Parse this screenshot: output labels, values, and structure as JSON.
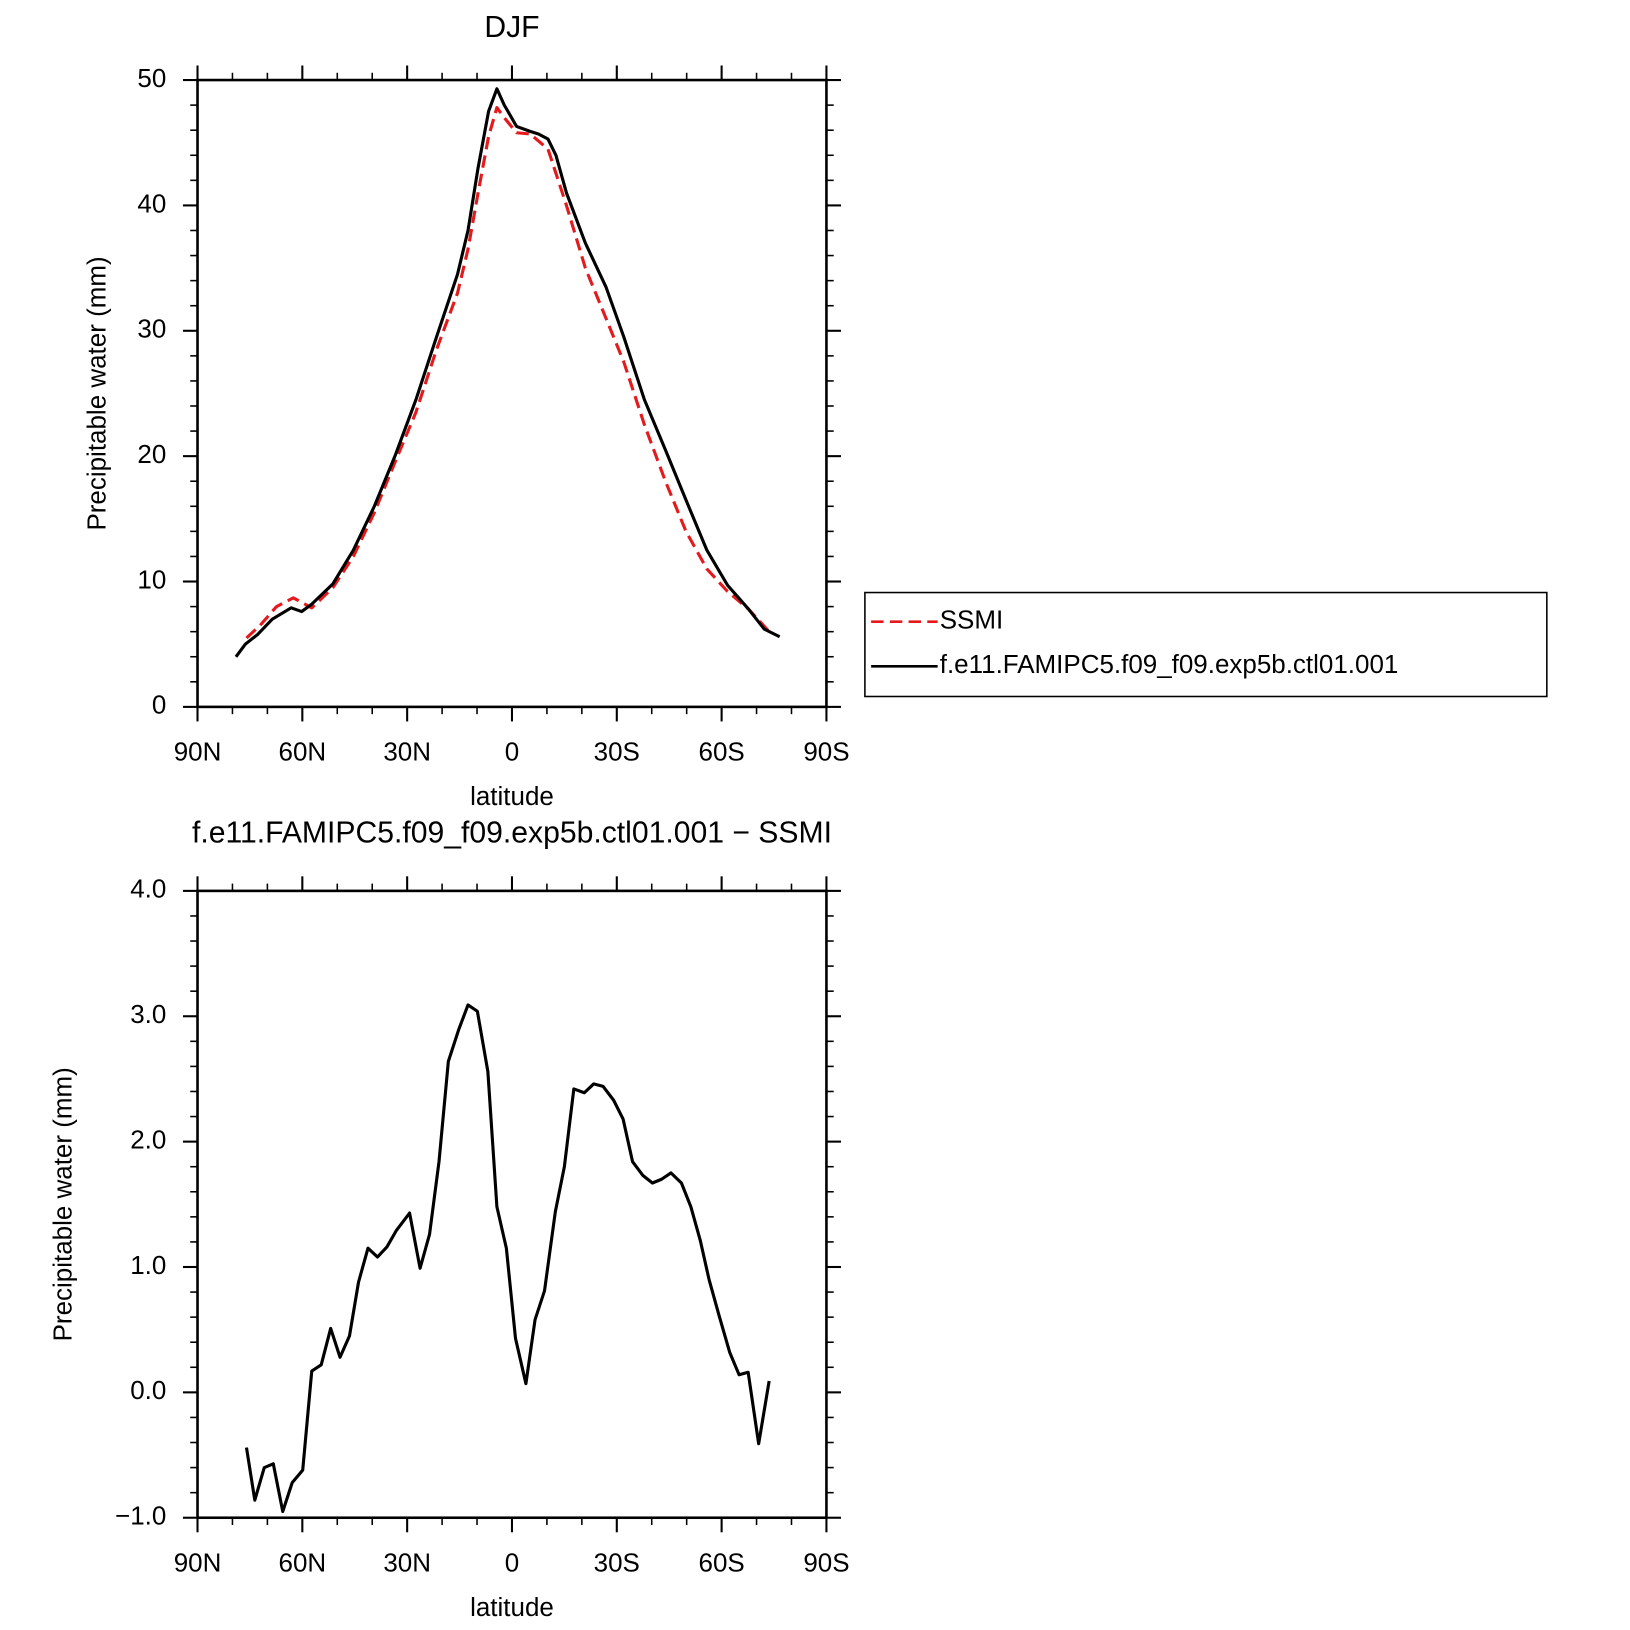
{
  "chart_data": [
    {
      "type": "line",
      "title": "DJF",
      "x_label": "latitude",
      "y_label": "Precipitable water (mm)",
      "xlim": [
        90,
        -90
      ],
      "xticks": [
        {
          "value": 90,
          "label": "90N"
        },
        {
          "value": 60,
          "label": "60N"
        },
        {
          "value": 30,
          "label": "30N"
        },
        0,
        {
          "value": -30,
          "label": "30S"
        },
        {
          "value": -60,
          "label": "60S"
        },
        {
          "value": -90,
          "label": "90S"
        }
      ],
      "ylim": [
        0,
        50
      ],
      "yticks": [
        0,
        10,
        20,
        30,
        40,
        50
      ],
      "legend": "right",
      "series": [
        {
          "name": "SSMI",
          "color": "#e41a1c",
          "style": "dashed",
          "x": [
            76.0,
            72.1,
            67.4,
            62.6,
            57.3,
            51.3,
            45.4,
            39.4,
            33.5,
            27.5,
            21.6,
            15.6,
            12.6,
            9.7,
            6.7,
            4.3,
            2.2,
            -1.3,
            -5.2,
            -10.3,
            -15.6,
            -21.0,
            -26.9,
            -32.0,
            -37.9,
            -43.9,
            -49.8,
            -55.8,
            -61.7,
            -67.7,
            -73.6
          ],
          "values": [
            5.5,
            6.5,
            8.0,
            8.7,
            7.9,
            9.5,
            12.0,
            15.5,
            19.5,
            23.5,
            28.5,
            33.0,
            36.5,
            41.0,
            45.5,
            47.8,
            47.0,
            45.8,
            45.7,
            44.5,
            40.0,
            35.0,
            31.0,
            27.5,
            22.5,
            18.0,
            14.0,
            11.0,
            9.2,
            7.8,
            6.0
          ]
        },
        {
          "name": "f.e11.FAMIPC5.f09_f09.exp5b.ctl01.001",
          "color": "#000000",
          "style": "solid",
          "x": [
            79.0,
            76.3,
            72.7,
            68.6,
            63.2,
            60.2,
            57.3,
            51.3,
            45.4,
            39.4,
            33.5,
            27.5,
            21.6,
            15.6,
            12.6,
            9.7,
            6.7,
            4.3,
            2.2,
            -1.3,
            -5.2,
            -7.6,
            -10.3,
            -12.6,
            -15.6,
            -21.0,
            -26.9,
            -32.0,
            -37.9,
            -43.9,
            -49.8,
            -55.8,
            -61.7,
            -67.7,
            -72.2,
            -76.6
          ],
          "values": [
            4.0,
            5.0,
            5.8,
            7.0,
            7.9,
            7.6,
            8.2,
            9.8,
            12.5,
            16.0,
            20.0,
            24.5,
            29.5,
            34.5,
            38.0,
            43.0,
            47.5,
            49.3,
            48.0,
            46.3,
            45.9,
            45.7,
            45.3,
            44.0,
            41.0,
            37.0,
            33.5,
            29.5,
            24.5,
            20.5,
            16.5,
            12.5,
            9.7,
            7.8,
            6.2,
            5.6
          ]
        }
      ]
    },
    {
      "type": "line",
      "title": "f.e11.FAMIPC5.f09_f09.exp5b.ctl01.001 − SSMI",
      "x_label": "latitude",
      "y_label": "Precipitable water (mm)",
      "xlim": [
        90,
        -90
      ],
      "xticks": [
        {
          "value": 90,
          "label": "90N"
        },
        {
          "value": 60,
          "label": "60N"
        },
        {
          "value": 30,
          "label": "30N"
        },
        0,
        {
          "value": -30,
          "label": "30S"
        },
        {
          "value": -60,
          "label": "60S"
        },
        {
          "value": -90,
          "label": "90S"
        }
      ],
      "ylim": [
        -1,
        4
      ],
      "yticks": [
        {
          "value": -1,
          "label": "−1.0"
        },
        {
          "value": 0,
          "label": "0.0"
        },
        {
          "value": 1,
          "label": "1.0"
        },
        {
          "value": 2,
          "label": "2.0"
        },
        {
          "value": 3,
          "label": "3.0"
        },
        {
          "value": 4,
          "label": "4.0"
        }
      ],
      "series": [
        {
          "color": "#000000",
          "style": "solid",
          "x": [
            76.0,
            73.6,
            70.9,
            68.3,
            65.6,
            62.9,
            59.9,
            57.3,
            54.6,
            51.9,
            49.2,
            46.5,
            43.9,
            41.2,
            38.5,
            35.8,
            33.1,
            29.3,
            26.3,
            23.6,
            20.9,
            18.2,
            15.3,
            12.6,
            9.9,
            6.9,
            4.3,
            1.6,
            -1.0,
            -4.0,
            -6.6,
            -9.3,
            -12.4,
            -15.0,
            -17.7,
            -20.7,
            -23.4,
            -26.1,
            -29.1,
            -31.8,
            -34.5,
            -37.5,
            -40.2,
            -42.8,
            -45.5,
            -48.5,
            -51.2,
            -53.9,
            -56.4,
            -59.3,
            -62.3,
            -65.0,
            -67.6,
            -70.6,
            -73.6
          ],
          "values": [
            -0.44,
            -0.86,
            -0.6,
            -0.57,
            -0.95,
            -0.72,
            -0.62,
            0.17,
            0.22,
            0.51,
            0.28,
            0.45,
            0.88,
            1.15,
            1.08,
            1.16,
            1.29,
            1.43,
            0.99,
            1.26,
            1.84,
            2.64,
            2.89,
            3.09,
            3.04,
            2.56,
            1.48,
            1.15,
            0.43,
            0.07,
            0.58,
            0.81,
            1.44,
            1.8,
            2.42,
            2.39,
            2.46,
            2.44,
            2.33,
            2.18,
            1.84,
            1.73,
            1.67,
            1.7,
            1.75,
            1.67,
            1.48,
            1.21,
            0.9,
            0.61,
            0.32,
            0.14,
            0.16,
            -0.41,
            0.09
          ]
        }
      ]
    }
  ]
}
